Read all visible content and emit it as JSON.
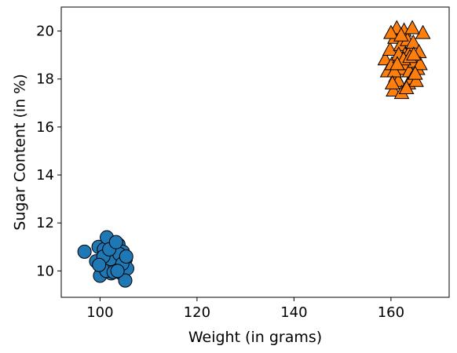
{
  "chart_data": {
    "type": "scatter",
    "xlabel": "Weight (in grams)",
    "ylabel": "Sugar Content (in %)",
    "xlim": [
      92,
      172
    ],
    "ylim": [
      8.9,
      21
    ],
    "xticks": [
      100,
      120,
      140,
      160
    ],
    "yticks": [
      10,
      12,
      14,
      16,
      18,
      20
    ],
    "xtick_labels": [
      "100",
      "120",
      "140",
      "160"
    ],
    "ytick_labels": [
      "10",
      "12",
      "14",
      "16",
      "18",
      "20"
    ],
    "grid": false,
    "series": [
      {
        "marker": "circle",
        "color": "#1f77b4",
        "points": [
          [
            96.8,
            10.8
          ],
          [
            99.2,
            10.4
          ],
          [
            99.7,
            11.0
          ],
          [
            100.3,
            10.1
          ],
          [
            100.0,
            9.8
          ],
          [
            100.8,
            10.9
          ],
          [
            101.1,
            10.5
          ],
          [
            101.4,
            11.4
          ],
          [
            101.7,
            10.2
          ],
          [
            102.0,
            10.7
          ],
          [
            102.3,
            9.9
          ],
          [
            102.6,
            10.3
          ],
          [
            102.9,
            10.9
          ],
          [
            103.2,
            10.1
          ],
          [
            103.5,
            10.6
          ],
          [
            103.8,
            11.1
          ],
          [
            104.1,
            10.4
          ],
          [
            104.4,
            9.9
          ],
          [
            104.7,
            10.8
          ],
          [
            105.0,
            10.2
          ],
          [
            105.3,
            10.5
          ],
          [
            105.6,
            10.1
          ],
          [
            105.2,
            9.6
          ],
          [
            101.3,
            10.0
          ],
          [
            103.0,
            10.3
          ],
          [
            102.2,
            10.5
          ],
          [
            104.0,
            10.7
          ],
          [
            100.7,
            10.6
          ],
          [
            102.8,
            9.95
          ],
          [
            104.6,
            10.3
          ],
          [
            101.9,
            10.9
          ],
          [
            103.6,
            10.0
          ],
          [
            105.4,
            10.6
          ],
          [
            99.8,
            10.25
          ],
          [
            103.3,
            11.2
          ]
        ]
      },
      {
        "marker": "triangle",
        "color": "#ff7f0e",
        "points": [
          [
            158.8,
            18.8
          ],
          [
            159.3,
            18.3
          ],
          [
            159.8,
            19.2
          ],
          [
            160.2,
            18.6
          ],
          [
            160.5,
            17.5
          ],
          [
            160.8,
            19.7
          ],
          [
            161.0,
            18.1
          ],
          [
            161.2,
            20.1
          ],
          [
            161.5,
            17.9
          ],
          [
            161.8,
            18.9
          ],
          [
            162.0,
            19.4
          ],
          [
            162.2,
            17.4
          ],
          [
            162.4,
            18.4
          ],
          [
            162.7,
            20.0
          ],
          [
            162.9,
            19.0
          ],
          [
            163.1,
            18.6
          ],
          [
            163.4,
            19.6
          ],
          [
            163.6,
            17.8
          ],
          [
            163.8,
            18.3
          ],
          [
            164.1,
            19.2
          ],
          [
            164.3,
            18.0
          ],
          [
            164.6,
            19.5
          ],
          [
            164.9,
            18.7
          ],
          [
            165.2,
            17.9
          ],
          [
            165.5,
            18.4
          ],
          [
            165.8,
            19.1
          ],
          [
            166.0,
            18.6
          ],
          [
            166.6,
            19.9
          ],
          [
            160.0,
            19.9
          ],
          [
            161.6,
            19.0
          ],
          [
            163.2,
            17.6
          ],
          [
            164.4,
            20.1
          ],
          [
            162.6,
            18.8
          ],
          [
            160.7,
            18.3
          ],
          [
            165.0,
            18.2
          ],
          [
            163.9,
            18.9
          ],
          [
            161.3,
            18.6
          ],
          [
            162.1,
            19.8
          ],
          [
            164.7,
            19.0
          ],
          [
            160.3,
            17.8
          ]
        ]
      }
    ]
  }
}
